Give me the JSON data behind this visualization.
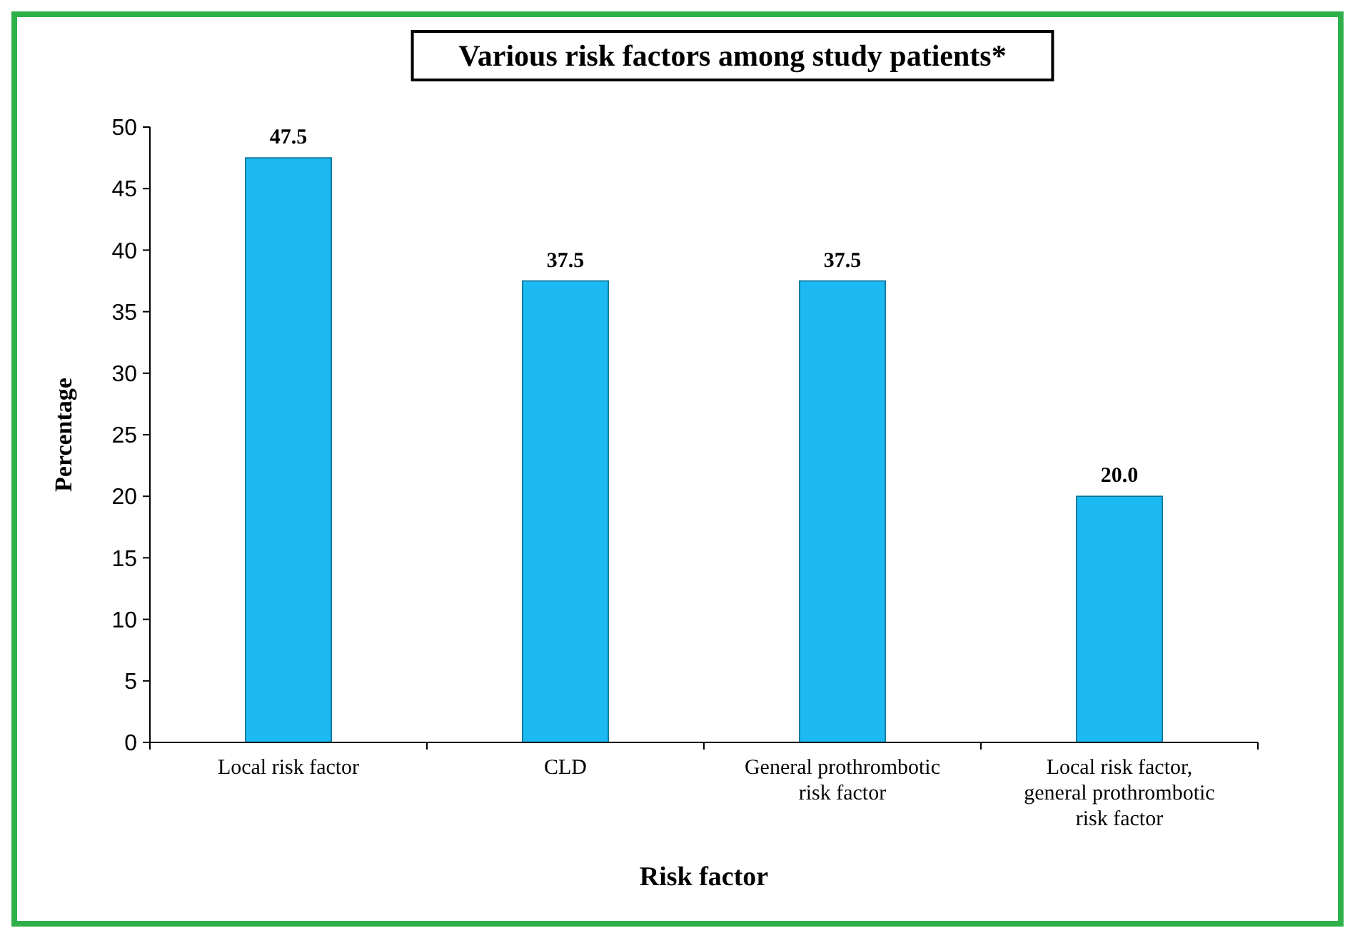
{
  "chart_data": {
    "type": "bar",
    "title": "Various risk factors among study patients*",
    "xlabel": "Risk factor",
    "ylabel": "Percentage",
    "categories": [
      "Local risk factor",
      "CLD",
      "General prothrombotic risk factor",
      "Local risk factor, general prothrombotic risk factor"
    ],
    "values": [
      47.5,
      37.5,
      37.5,
      20
    ],
    "value_labels": [
      "47.5",
      "37.5",
      "37.5",
      "20.0"
    ],
    "color": "#1cb9f2",
    "ylim": [
      0,
      50
    ],
    "yticks": [
      0,
      5,
      10,
      15,
      20,
      25,
      30,
      35,
      40,
      45,
      50
    ],
    "grid": false
  }
}
